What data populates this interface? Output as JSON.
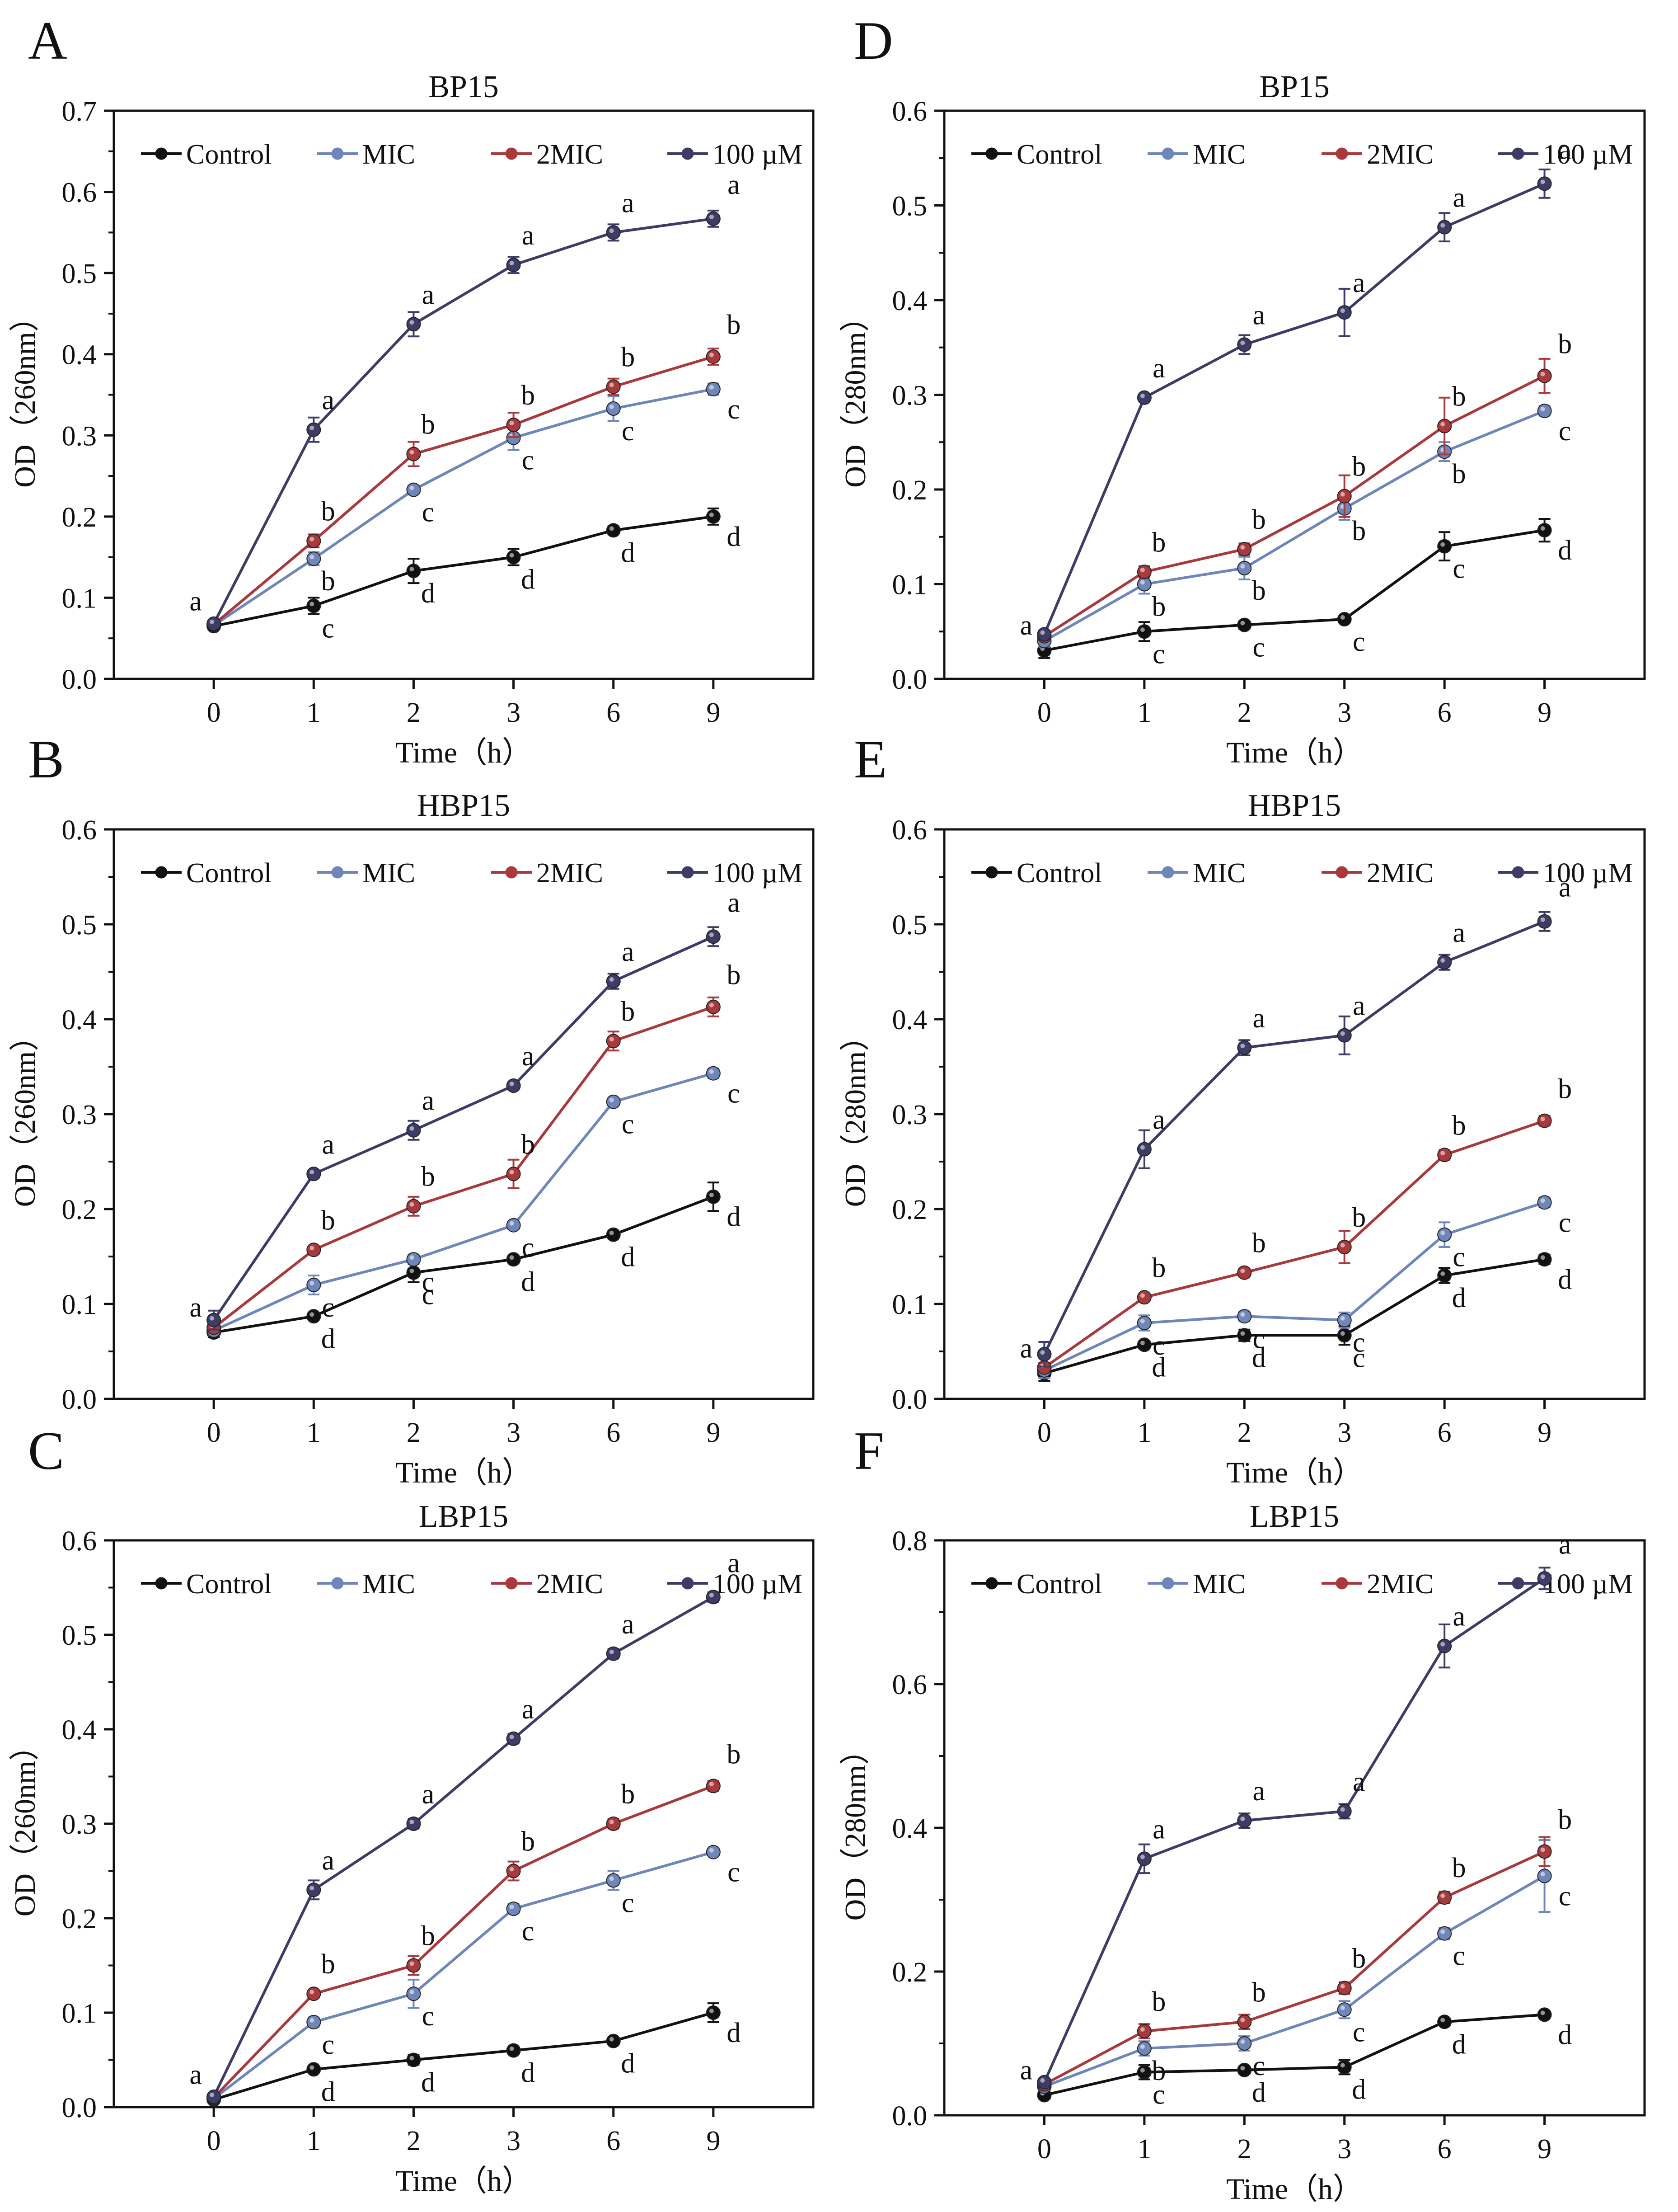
{
  "figure": {
    "colors": {
      "Control": "#111111",
      "MIC": "#6f86b9",
      "2MIC": "#a8393c",
      "100 µM": "#3c3c66"
    },
    "legend_labels": [
      "Control",
      "MIC",
      "2MIC",
      "100 µM"
    ]
  },
  "chart_data": [
    {
      "panel": "A",
      "type": "line",
      "title": "BP15",
      "xlabel": "Time（h）",
      "ylabel": "OD（260nm）",
      "categories": [
        "0",
        "1",
        "2",
        "3",
        "6",
        "9"
      ],
      "ylim": [
        0,
        0.7
      ],
      "yticks": [
        "0.0",
        "0.1",
        "0.2",
        "0.3",
        "0.4",
        "0.5",
        "0.6",
        "0.7"
      ],
      "series": [
        {
          "name": "Control",
          "values": [
            0.065,
            0.09,
            0.133,
            0.15,
            0.183,
            0.2
          ],
          "errors": [
            0.004,
            0.01,
            0.015,
            0.01,
            0.005,
            0.01
          ],
          "letters": [
            "a",
            "c",
            "d",
            "d",
            "d",
            "d"
          ]
        },
        {
          "name": "MIC",
          "values": [
            0.066,
            0.148,
            0.233,
            0.297,
            0.333,
            0.357
          ],
          "errors": [
            0.004,
            0.008,
            0.005,
            0.015,
            0.015,
            0.007
          ],
          "letters": [
            "",
            "b",
            "c",
            "c",
            "c",
            "c"
          ]
        },
        {
          "name": "2MIC",
          "values": [
            0.067,
            0.17,
            0.277,
            0.313,
            0.36,
            0.397
          ],
          "errors": [
            0.004,
            0.008,
            0.015,
            0.015,
            0.01,
            0.01
          ],
          "letters": [
            "",
            "b",
            "b",
            "b",
            "b",
            "b"
          ]
        },
        {
          "name": "100 µM",
          "values": [
            0.068,
            0.307,
            0.437,
            0.51,
            0.55,
            0.567
          ],
          "errors": [
            0.004,
            0.015,
            0.015,
            0.01,
            0.01,
            0.01
          ],
          "letters": [
            "",
            "a",
            "a",
            "a",
            "a",
            "a"
          ]
        }
      ]
    },
    {
      "panel": "B",
      "type": "line",
      "title": "HBP15",
      "xlabel": "Time（h）",
      "ylabel": "OD（260nm）",
      "categories": [
        "0",
        "1",
        "2",
        "3",
        "6",
        "9"
      ],
      "ylim": [
        0,
        0.6
      ],
      "yticks": [
        "0.0",
        "0.1",
        "0.2",
        "0.3",
        "0.4",
        "0.5",
        "0.6"
      ],
      "series": [
        {
          "name": "Control",
          "values": [
            0.07,
            0.087,
            0.133,
            0.147,
            0.173,
            0.213
          ],
          "errors": [
            0.005,
            0.004,
            0.01,
            0.004,
            0.004,
            0.015
          ],
          "letters": [
            "a",
            "d",
            "c",
            "d",
            "d",
            "d"
          ]
        },
        {
          "name": "MIC",
          "values": [
            0.072,
            0.12,
            0.147,
            0.183,
            0.313,
            0.343
          ],
          "errors": [
            0.005,
            0.01,
            0.005,
            0.004,
            0.004,
            0.005
          ],
          "letters": [
            "",
            "c",
            "c",
            "c",
            "c",
            "c"
          ]
        },
        {
          "name": "2MIC",
          "values": [
            0.075,
            0.157,
            0.203,
            0.237,
            0.377,
            0.413
          ],
          "errors": [
            0.005,
            0.004,
            0.01,
            0.015,
            0.01,
            0.01
          ],
          "letters": [
            "",
            "b",
            "b",
            "b",
            "b",
            "b"
          ]
        },
        {
          "name": "100 µM",
          "values": [
            0.083,
            0.237,
            0.283,
            0.33,
            0.44,
            0.487
          ],
          "errors": [
            0.01,
            0.004,
            0.01,
            0.003,
            0.008,
            0.01
          ],
          "letters": [
            "",
            "a",
            "a",
            "a",
            "a",
            "a"
          ]
        }
      ]
    },
    {
      "panel": "C",
      "type": "line",
      "title": "LBP15",
      "xlabel": "Time（h）",
      "ylabel": "OD（260nm）",
      "categories": [
        "0",
        "1",
        "2",
        "3",
        "6",
        "9"
      ],
      "ylim": [
        0,
        0.6
      ],
      "yticks": [
        "0.0",
        "0.1",
        "0.2",
        "0.3",
        "0.4",
        "0.5",
        "0.6"
      ],
      "series": [
        {
          "name": "Control",
          "values": [
            0.008,
            0.04,
            0.05,
            0.06,
            0.07,
            0.1
          ],
          "errors": [
            0.003,
            0.003,
            0.005,
            0.003,
            0.003,
            0.01
          ],
          "letters": [
            "a",
            "d",
            "d",
            "d",
            "d",
            "d"
          ]
        },
        {
          "name": "MIC",
          "values": [
            0.009,
            0.09,
            0.12,
            0.21,
            0.24,
            0.27
          ],
          "errors": [
            0.003,
            0.005,
            0.015,
            0.005,
            0.01,
            0.003
          ],
          "letters": [
            "",
            "c",
            "c",
            "c",
            "c",
            "c"
          ]
        },
        {
          "name": "2MIC",
          "values": [
            0.01,
            0.12,
            0.15,
            0.25,
            0.3,
            0.34
          ],
          "errors": [
            0.003,
            0.003,
            0.01,
            0.01,
            0.005,
            0.005
          ],
          "letters": [
            "",
            "b",
            "b",
            "b",
            "b",
            "b"
          ]
        },
        {
          "name": "100 µM",
          "values": [
            0.011,
            0.23,
            0.3,
            0.39,
            0.48,
            0.54
          ],
          "errors": [
            0.003,
            0.01,
            0.005,
            0.005,
            0.005,
            0.005
          ],
          "letters": [
            "",
            "a",
            "a",
            "a",
            "a",
            "a"
          ]
        }
      ]
    },
    {
      "panel": "D",
      "type": "line",
      "title": "BP15",
      "xlabel": "Time（h）",
      "ylabel": "OD（280nm）",
      "categories": [
        "0",
        "1",
        "2",
        "3",
        "6",
        "9"
      ],
      "ylim": [
        0,
        0.6
      ],
      "yticks": [
        "0.0",
        "0.1",
        "0.2",
        "0.3",
        "0.4",
        "0.5",
        "0.6"
      ],
      "series": [
        {
          "name": "Control",
          "values": [
            0.03,
            0.05,
            0.057,
            0.063,
            0.14,
            0.157
          ],
          "errors": [
            0.008,
            0.01,
            0.004,
            0.003,
            0.015,
            0.012
          ],
          "letters": [
            "a",
            "c",
            "c",
            "c",
            "c",
            "d"
          ]
        },
        {
          "name": "MIC",
          "values": [
            0.04,
            0.1,
            0.117,
            0.18,
            0.24,
            0.283
          ],
          "errors": [
            0.006,
            0.01,
            0.012,
            0.012,
            0.01,
            0.005
          ],
          "letters": [
            "",
            "b",
            "b",
            "b",
            "b",
            "c"
          ]
        },
        {
          "name": "2MIC",
          "values": [
            0.045,
            0.113,
            0.137,
            0.193,
            0.267,
            0.32
          ],
          "errors": [
            0.004,
            0.006,
            0.006,
            0.022,
            0.03,
            0.018
          ],
          "letters": [
            "",
            "b",
            "b",
            "b",
            "b",
            "b"
          ]
        },
        {
          "name": "100 µM",
          "values": [
            0.047,
            0.297,
            0.353,
            0.387,
            0.477,
            0.523
          ],
          "errors": [
            0.004,
            0.004,
            0.01,
            0.025,
            0.015,
            0.015
          ],
          "letters": [
            "",
            "a",
            "a",
            "a",
            "a",
            "a"
          ]
        }
      ]
    },
    {
      "panel": "E",
      "type": "line",
      "title": "HBP15",
      "xlabel": "Time（h）",
      "ylabel": "OD（280nm）",
      "categories": [
        "0",
        "1",
        "2",
        "3",
        "6",
        "9"
      ],
      "ylim": [
        0,
        0.6
      ],
      "yticks": [
        "0.0",
        "0.1",
        "0.2",
        "0.3",
        "0.4",
        "0.5",
        "0.6"
      ],
      "series": [
        {
          "name": "Control",
          "values": [
            0.027,
            0.057,
            0.067,
            0.067,
            0.13,
            0.147
          ],
          "errors": [
            0.008,
            0.004,
            0.006,
            0.01,
            0.008,
            0.005
          ],
          "letters": [
            "a",
            "d",
            "d",
            "c",
            "d",
            "d"
          ]
        },
        {
          "name": "MIC",
          "values": [
            0.03,
            0.08,
            0.087,
            0.083,
            0.173,
            0.207
          ],
          "errors": [
            0.008,
            0.008,
            0.005,
            0.008,
            0.013,
            0.005
          ],
          "letters": [
            "",
            "c",
            "c",
            "c",
            "c",
            "c"
          ]
        },
        {
          "name": "2MIC",
          "values": [
            0.033,
            0.107,
            0.133,
            0.16,
            0.257,
            0.293
          ],
          "errors": [
            0.005,
            0.004,
            0.004,
            0.017,
            0.005,
            0.005
          ],
          "letters": [
            "",
            "b",
            "b",
            "b",
            "b",
            "b"
          ]
        },
        {
          "name": "100 µM",
          "values": [
            0.047,
            0.263,
            0.37,
            0.383,
            0.46,
            0.503
          ],
          "errors": [
            0.013,
            0.02,
            0.008,
            0.02,
            0.008,
            0.01
          ],
          "letters": [
            "",
            "a",
            "a",
            "a",
            "a",
            "a"
          ]
        }
      ]
    },
    {
      "panel": "F",
      "type": "line",
      "title": "LBP15",
      "xlabel": "Time（h）",
      "ylabel": "OD（280nm）",
      "categories": [
        "0",
        "1",
        "2",
        "3",
        "6",
        "9"
      ],
      "ylim": [
        0,
        0.8
      ],
      "yticks": [
        "0.0",
        "0.2",
        "0.4",
        "0.6",
        "0.8"
      ],
      "series": [
        {
          "name": "Control",
          "values": [
            0.028,
            0.06,
            0.063,
            0.067,
            0.13,
            0.14
          ],
          "errors": [
            0.005,
            0.01,
            0.005,
            0.01,
            0.004,
            0.004
          ],
          "letters": [
            "a",
            "c",
            "d",
            "d",
            "d",
            "d"
          ]
        },
        {
          "name": "MIC",
          "values": [
            0.04,
            0.093,
            0.1,
            0.147,
            0.253,
            0.333
          ],
          "errors": [
            0.005,
            0.01,
            0.01,
            0.012,
            0.008,
            0.05
          ],
          "letters": [
            "",
            "b",
            "c",
            "c",
            "c",
            "c"
          ]
        },
        {
          "name": "2MIC",
          "values": [
            0.043,
            0.117,
            0.13,
            0.177,
            0.303,
            0.367
          ],
          "errors": [
            0.005,
            0.01,
            0.01,
            0.008,
            0.008,
            0.02
          ],
          "letters": [
            "",
            "b",
            "b",
            "b",
            "b",
            "b"
          ]
        },
        {
          "name": "100 µM",
          "values": [
            0.046,
            0.357,
            0.41,
            0.423,
            0.653,
            0.747
          ],
          "errors": [
            0.005,
            0.02,
            0.01,
            0.01,
            0.03,
            0.015
          ],
          "letters": [
            "",
            "a",
            "a",
            "a",
            "a",
            "a"
          ]
        }
      ]
    }
  ]
}
